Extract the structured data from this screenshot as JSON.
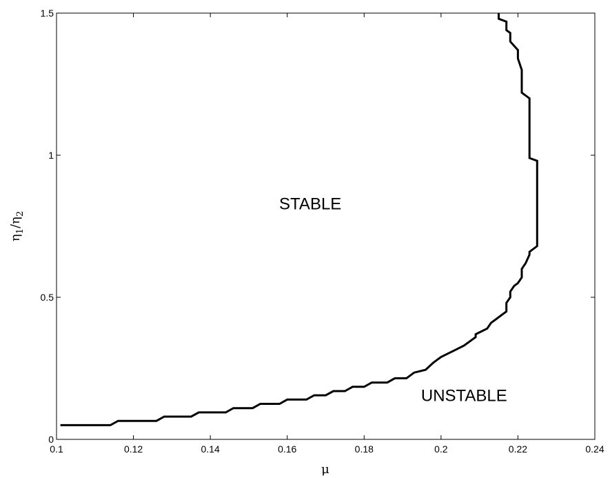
{
  "chart_data": {
    "type": "line",
    "title": "",
    "xlabel": "μ",
    "ylabel_main": "η",
    "ylabel_sub1": "1",
    "ylabel_slash": "/",
    "ylabel_sub2": "2",
    "xlim": [
      0.1,
      0.24
    ],
    "ylim": [
      0,
      1.5
    ],
    "grid": false,
    "x_ticks": [
      0.1,
      0.12,
      0.14,
      0.16,
      0.18,
      0.2,
      0.22,
      0.24
    ],
    "x_tick_labels": [
      "0.1",
      "0.12",
      "0.14",
      "0.16",
      "0.18",
      "0.2",
      "0.22",
      "0.24"
    ],
    "y_ticks": [
      0,
      0.5,
      1,
      1.5
    ],
    "y_tick_labels": [
      "0",
      "0.5",
      "1",
      "1.5"
    ],
    "annotations": [
      {
        "text": "STABLE",
        "x": 0.166,
        "y": 0.81
      },
      {
        "text": "UNSTABLE",
        "x": 0.206,
        "y": 0.135
      }
    ],
    "series": [
      {
        "color": "#000000",
        "x": [
          0.101,
          0.114,
          0.116,
          0.126,
          0.128,
          0.135,
          0.137,
          0.144,
          0.146,
          0.151,
          0.153,
          0.158,
          0.16,
          0.165,
          0.167,
          0.17,
          0.172,
          0.175,
          0.177,
          0.18,
          0.182,
          0.186,
          0.188,
          0.191,
          0.193,
          0.196,
          0.198,
          0.2,
          0.203,
          0.206,
          0.209,
          0.209,
          0.212,
          0.213,
          0.214,
          0.216,
          0.217,
          0.217,
          0.218,
          0.218,
          0.219,
          0.22,
          0.221,
          0.221,
          0.222,
          0.223,
          0.223,
          0.225,
          0.225,
          0.223,
          0.223,
          0.221,
          0.221,
          0.22,
          0.22,
          0.218,
          0.218,
          0.217,
          0.217,
          0.215,
          0.215
        ],
        "y": [
          0.05,
          0.05,
          0.065,
          0.065,
          0.08,
          0.08,
          0.095,
          0.095,
          0.11,
          0.11,
          0.125,
          0.125,
          0.14,
          0.14,
          0.155,
          0.155,
          0.17,
          0.17,
          0.185,
          0.185,
          0.2,
          0.2,
          0.215,
          0.215,
          0.235,
          0.245,
          0.27,
          0.29,
          0.31,
          0.33,
          0.36,
          0.37,
          0.39,
          0.41,
          0.42,
          0.44,
          0.45,
          0.48,
          0.5,
          0.52,
          0.54,
          0.55,
          0.57,
          0.6,
          0.62,
          0.65,
          0.66,
          0.68,
          0.98,
          0.99,
          1.2,
          1.22,
          1.3,
          1.34,
          1.37,
          1.4,
          1.43,
          1.44,
          1.47,
          1.48,
          1.5
        ]
      }
    ]
  }
}
